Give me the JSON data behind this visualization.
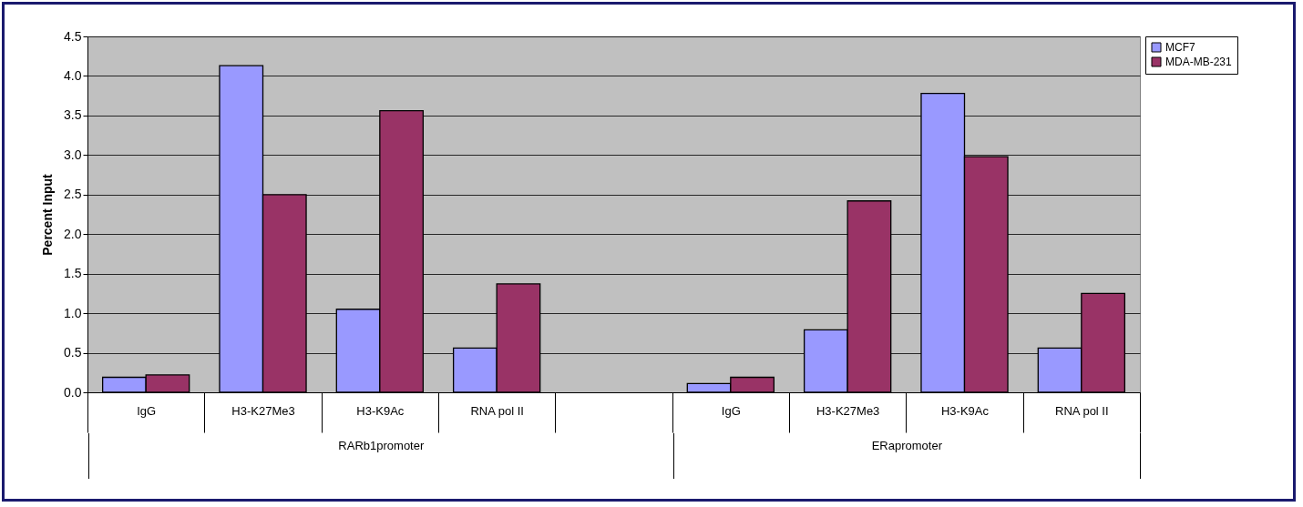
{
  "chart_data": {
    "type": "bar",
    "ylabel": "Percent Input",
    "categories": [
      "IgG",
      "H3-K27Me3",
      "H3-K9Ac",
      "RNA pol II",
      null,
      "IgG",
      "H3-K27Me3",
      "H3-K9Ac",
      "RNA pol II"
    ],
    "series": [
      {
        "name": "MCF7",
        "color": "#9999ff",
        "values": [
          0.19,
          4.13,
          1.05,
          0.56,
          null,
          0.11,
          0.79,
          3.78,
          0.56
        ]
      },
      {
        "name": "MDA-MB-231",
        "color": "#993366",
        "values": [
          0.22,
          2.5,
          3.56,
          1.37,
          null,
          0.19,
          2.42,
          2.98,
          1.25
        ]
      }
    ],
    "annotations": [
      "RARb1promoter",
      "ERapromoter"
    ],
    "ylim": [
      0,
      4.5
    ],
    "yticks": [
      {
        "value": 0,
        "label": "0.0"
      },
      {
        "value": 0.5,
        "label": "0.5"
      },
      {
        "value": 1,
        "label": "1.0"
      },
      {
        "value": 1.5,
        "label": "1.5"
      },
      {
        "value": 2,
        "label": "2.0"
      },
      {
        "value": 2.5,
        "label": "2.5"
      },
      {
        "value": 3,
        "label": "3.0"
      },
      {
        "value": 3.5,
        "label": "3.5"
      },
      {
        "value": 4,
        "label": "4.0"
      },
      {
        "value": 4.5,
        "label": "4.5"
      }
    ],
    "grid": "y",
    "legend": "right"
  }
}
